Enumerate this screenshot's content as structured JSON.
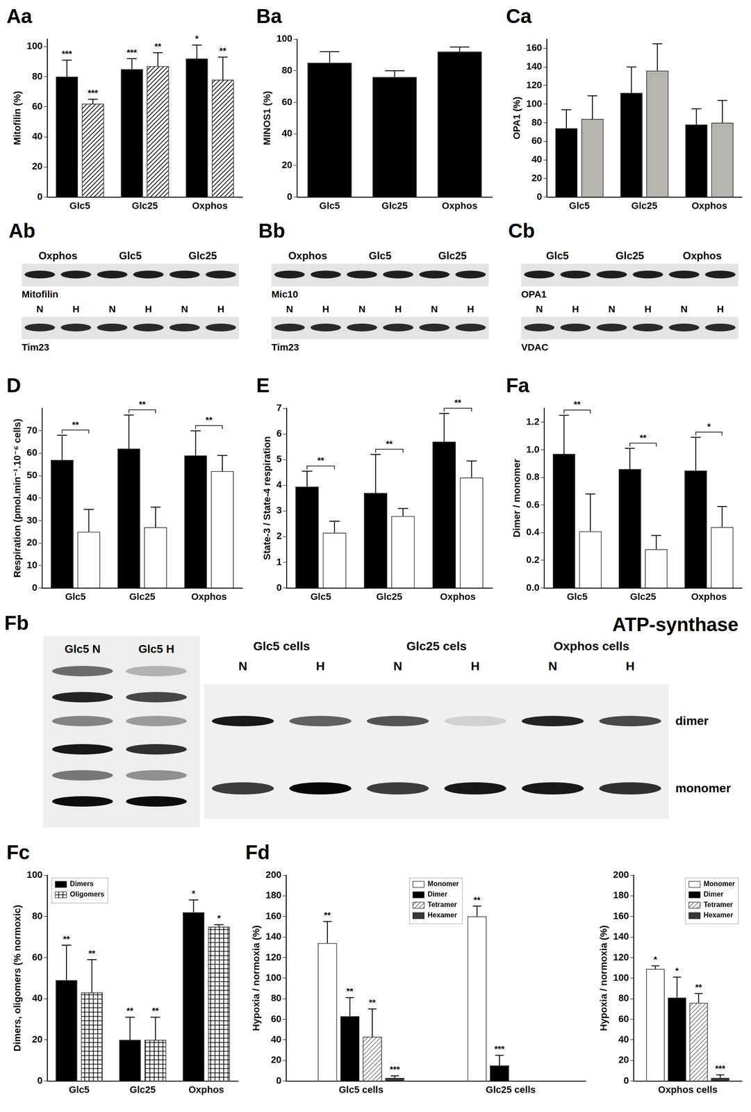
{
  "chart_data": [
    {
      "panel": "Aa",
      "type": "bar",
      "y_label": "Mitofilin (%)",
      "categories": [
        "Glc5",
        "Glc25",
        "Oxphos"
      ],
      "series": [
        {
          "color": "#000000",
          "values": [
            80,
            85,
            92
          ],
          "errors": [
            11,
            7,
            9
          ],
          "significance": [
            "***",
            "***",
            "*"
          ]
        },
        {
          "color": "#000000",
          "marker": "hatch",
          "values": [
            62,
            87,
            78
          ],
          "errors": [
            3,
            9,
            15
          ],
          "significance": [
            "***",
            "**",
            "**"
          ]
        }
      ],
      "ylim": [
        0,
        105
      ],
      "yticks": [
        0,
        20,
        40,
        60,
        80,
        100
      ],
      "grid": false
    },
    {
      "panel": "Ba",
      "type": "bar",
      "y_label": "MINOS1 (%)",
      "categories": [
        "Glc5",
        "Glc25",
        "Oxphos"
      ],
      "series": [
        {
          "color": "#000000",
          "values": [
            85,
            76,
            92
          ],
          "errors": [
            7,
            4,
            3
          ]
        }
      ],
      "ylim": [
        0,
        100
      ],
      "yticks": [
        0,
        20,
        40,
        60,
        80,
        100
      ],
      "grid": false
    },
    {
      "panel": "Ca",
      "type": "bar",
      "y_label": "OPA1 (%)",
      "categories": [
        "Glc5",
        "Glc25",
        "Oxphos"
      ],
      "series": [
        {
          "color": "#000000",
          "values": [
            74,
            112,
            78
          ],
          "errors": [
            20,
            28,
            17
          ]
        },
        {
          "color": "#b5b5ad",
          "values": [
            84,
            136,
            80
          ],
          "errors": [
            25,
            29,
            24
          ]
        }
      ],
      "ylim": [
        0,
        170
      ],
      "yticks": [
        0,
        20,
        40,
        60,
        80,
        100,
        120,
        140,
        160
      ],
      "grid": false
    },
    {
      "panel": "D",
      "type": "bar",
      "y_label": "Respiration (pmol.min⁻¹.10⁻⁶ cells)",
      "categories": [
        "Glc5",
        "Glc25",
        "Oxphos"
      ],
      "series": [
        {
          "color": "#000000",
          "values": [
            57,
            62,
            59
          ],
          "errors": [
            11,
            15,
            11
          ]
        },
        {
          "color": "#ffffff",
          "values": [
            25,
            27,
            52
          ],
          "errors": [
            10,
            9,
            7
          ]
        }
      ],
      "comparisons": [
        "**",
        "**",
        "**"
      ],
      "ylim": [
        0,
        80
      ],
      "yticks": [
        0,
        10,
        20,
        30,
        40,
        50,
        60,
        70
      ],
      "grid": false
    },
    {
      "panel": "E",
      "type": "bar",
      "y_label": "State-3 / State-4 respiration",
      "categories": [
        "Glc5",
        "Glc25",
        "Oxphos"
      ],
      "series": [
        {
          "color": "#000000",
          "values": [
            3.95,
            3.7,
            5.7
          ],
          "errors": [
            0.6,
            1.5,
            1.1
          ]
        },
        {
          "color": "#ffffff",
          "values": [
            2.15,
            2.8,
            4.3
          ],
          "errors": [
            0.45,
            0.3,
            0.65
          ]
        }
      ],
      "comparisons": [
        "**",
        "**",
        "**"
      ],
      "ylim": [
        0,
        7
      ],
      "yticks": [
        0,
        1,
        2,
        3,
        4,
        5,
        6,
        7
      ],
      "grid": false
    },
    {
      "panel": "Fa",
      "type": "bar",
      "y_label": "Dimer / monomer",
      "categories": [
        "Glc5",
        "Glc25",
        "Oxphos"
      ],
      "series": [
        {
          "color": "#000000",
          "values": [
            0.97,
            0.86,
            0.85
          ],
          "errors": [
            0.28,
            0.15,
            0.24
          ]
        },
        {
          "color": "#ffffff",
          "values": [
            0.41,
            0.28,
            0.44
          ],
          "errors": [
            0.27,
            0.1,
            0.15
          ]
        }
      ],
      "comparisons": [
        "**",
        "**",
        "*"
      ],
      "ylim": [
        0,
        1.3
      ],
      "yticks": [
        {
          "value": 0,
          "label": "0.0"
        },
        0.2,
        0.4,
        0.6,
        0.8,
        {
          "value": 1,
          "label": "1.0"
        },
        1.2
      ],
      "grid": false
    },
    {
      "panel": "Fc",
      "type": "bar",
      "y_label": "Dimers, oligomers (% normoxic)",
      "categories": [
        "Glc5",
        "Glc25",
        "Oxphos"
      ],
      "series": [
        {
          "name": "Dimers",
          "color": "#000000",
          "values": [
            49,
            20,
            82
          ],
          "errors": [
            17,
            11,
            6
          ],
          "significance": [
            "**",
            "**",
            "*"
          ]
        },
        {
          "name": "Oligomers",
          "color": "#000000",
          "marker": "crosshatch",
          "values": [
            43,
            20,
            75
          ],
          "errors": [
            16,
            11,
            1
          ],
          "significance": [
            "**",
            "**",
            "*"
          ]
        }
      ],
      "legend": "upper left",
      "ylim": [
        0,
        100
      ],
      "yticks": [
        0,
        20,
        40,
        60,
        80,
        100
      ],
      "grid": false
    },
    {
      "panel": "Fd",
      "type": "bar",
      "y_label": "Hypoxia / normoxia (%)",
      "categories": [
        "Glc5 cells",
        "Glc25 cells"
      ],
      "series": [
        {
          "name": "Monomer",
          "color": "#ffffff",
          "values": [
            134,
            160
          ],
          "errors": [
            21,
            10
          ],
          "significance": [
            "**",
            "**"
          ]
        },
        {
          "name": "Dimer",
          "color": "#000000",
          "values": [
            63,
            15
          ],
          "errors": [
            18,
            10
          ],
          "significance": [
            "**",
            "***"
          ]
        },
        {
          "name": "Tetramer",
          "color": "#808080",
          "marker": "hatch",
          "values": [
            43,
            null
          ],
          "errors": [
            27,
            null
          ],
          "significance": [
            "**",
            null
          ]
        },
        {
          "name": "Hexamer",
          "color": "#3a3a3a",
          "values": [
            3,
            null
          ],
          "errors": [
            2,
            null
          ],
          "significance": [
            "***",
            null
          ]
        }
      ],
      "legend": "upper center",
      "ylim": [
        0,
        200
      ],
      "yticks": [
        0,
        20,
        40,
        60,
        80,
        100,
        120,
        140,
        160,
        180,
        200
      ],
      "grid": false
    },
    {
      "type": "bar",
      "y_label": "Hypoxia / normoxia (%)",
      "categories": [
        "Oxphos cells"
      ],
      "series": [
        {
          "name": "Monomer",
          "color": "#ffffff",
          "values": [
            109
          ],
          "errors": [
            3
          ],
          "significance": [
            "*"
          ]
        },
        {
          "name": "Dimer",
          "color": "#000000",
          "values": [
            81
          ],
          "errors": [
            20
          ],
          "significance": [
            "*"
          ]
        },
        {
          "name": "Tetramer",
          "color": "#808080",
          "marker": "hatch",
          "values": [
            76
          ],
          "errors": [
            9
          ],
          "significance": [
            "**"
          ]
        },
        {
          "name": "Hexamer",
          "color": "#3a3a3a",
          "values": [
            3
          ],
          "errors": [
            3
          ],
          "significance": [
            "***"
          ]
        }
      ],
      "legend": "upper right",
      "ylim": [
        0,
        200
      ],
      "yticks": [
        0,
        20,
        40,
        60,
        80,
        100,
        120,
        140,
        160,
        180,
        200
      ],
      "grid": false
    }
  ],
  "blots": [
    {
      "panel": "Ab",
      "groups": [
        "Oxphos",
        "Glc5",
        "Glc25"
      ],
      "conditions": [
        "N",
        "H",
        "N",
        "H",
        "N",
        "H"
      ],
      "rows": [
        "Mitofilin",
        "Tim23"
      ]
    },
    {
      "panel": "Bb",
      "groups": [
        "Oxphos",
        "Glc5",
        "Glc25"
      ],
      "conditions": [
        "N",
        "H",
        "N",
        "H",
        "N",
        "H"
      ],
      "rows": [
        "Mic10",
        "Tim23"
      ]
    },
    {
      "panel": "Cb",
      "groups": [
        "Glc5",
        "Glc25",
        "Oxphos"
      ],
      "conditions": [
        "N",
        "H",
        "N",
        "H",
        "N",
        "H"
      ],
      "rows": [
        "OPA1",
        "VDAC"
      ]
    }
  ],
  "atp_blot": {
    "panel": "Fb",
    "title": "ATP-synthase",
    "left_lanes": [
      "Glc5 N",
      "Glc5 H"
    ],
    "groups": [
      "Glc5 cells",
      "Glc25 cels",
      "Oxphos cells"
    ],
    "conditions": [
      "N",
      "H",
      "N",
      "H",
      "N",
      "H"
    ],
    "bands": [
      "dimer",
      "monomer"
    ]
  }
}
